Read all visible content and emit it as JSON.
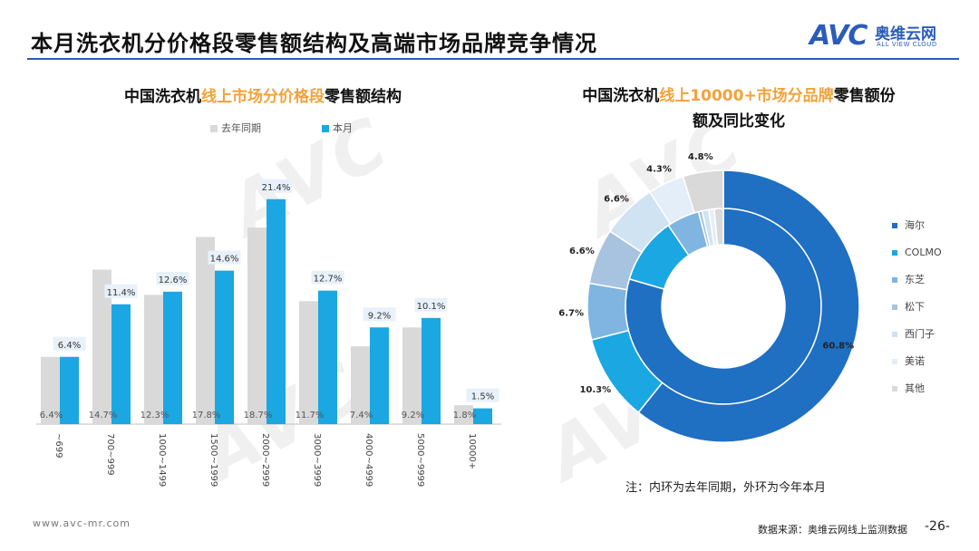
{
  "header": {
    "title": "本月洗衣机分价格段零售额结构及高端市场品牌竞争情况",
    "logo_text": "AVC",
    "logo_cn": "奥维云网",
    "logo_en": "ALL VIEW CLOUD"
  },
  "watermark": {
    "text": "AVC"
  },
  "left_chart": {
    "title_pre": "中国洗衣机",
    "title_hl": "线上市场分价格段",
    "title_post": "零售额结构",
    "legend": [
      "去年同期",
      "本月"
    ]
  },
  "right_chart": {
    "title_line1_pre": "中国洗衣机",
    "title_line1_hl": "线上10000+市场分品牌",
    "title_line1_post": "零售额份",
    "title_line2": "额及同比变化"
  },
  "chart_data": [
    {
      "type": "bar",
      "categories": [
        "~699",
        "700~999",
        "1000~1499",
        "1500~1999",
        "2000~2999",
        "3000~3999",
        "4000~4999",
        "5000~9999",
        "10000+"
      ],
      "series": [
        {
          "name": "去年同期",
          "values": [
            6.4,
            14.7,
            12.3,
            17.8,
            18.7,
            11.7,
            7.4,
            9.2,
            1.8
          ],
          "color": "#d9d9d9"
        },
        {
          "name": "本月",
          "values": [
            6.4,
            11.4,
            12.6,
            14.6,
            21.4,
            12.7,
            9.2,
            10.1,
            1.5
          ],
          "color": "#1ba7e2"
        }
      ],
      "labels": {
        "prev": [
          "6.4%",
          "14.7%",
          "12.3%",
          "17.8%",
          "18.7%",
          "11.7%",
          "7.4%",
          "9.2%",
          "1.8%"
        ],
        "curr": [
          "6.4%",
          "11.4%",
          "12.6%",
          "14.6%",
          "21.4%",
          "12.7%",
          "9.2%",
          "10.1%",
          "1.5%"
        ]
      },
      "ylim": [
        0,
        25
      ],
      "legend_position": "top"
    },
    {
      "type": "pie",
      "variant": "double-donut",
      "brands": [
        "海尔",
        "COLMO",
        "东芝",
        "松下",
        "西门子",
        "美诺",
        "其他"
      ],
      "colors": [
        "#1f6fc2",
        "#1ba7e2",
        "#7fb5e0",
        "#a7c3df",
        "#cfe3f3",
        "#e3eef8",
        "#d9d9d9"
      ],
      "outer_ring": {
        "name": "今年本月",
        "values": [
          60.8,
          10.3,
          6.7,
          6.6,
          6.6,
          4.3,
          4.8
        ]
      },
      "inner_ring": {
        "name": "去年同期",
        "values": [
          79.5,
          11.0,
          5.4,
          0.6,
          1.1,
          0.9,
          1.5
        ]
      },
      "outer_labels": [
        "60.8%",
        "10.3%",
        "6.7%",
        "6.6%",
        "6.6%",
        "4.3%",
        "4.8%"
      ]
    }
  ],
  "note": "注：内环为去年同期，外环为今年本月",
  "footer": {
    "url": "www.avc-mr.com",
    "source": "数据来源：奥维云网线上监测数据",
    "page": "-26-"
  }
}
